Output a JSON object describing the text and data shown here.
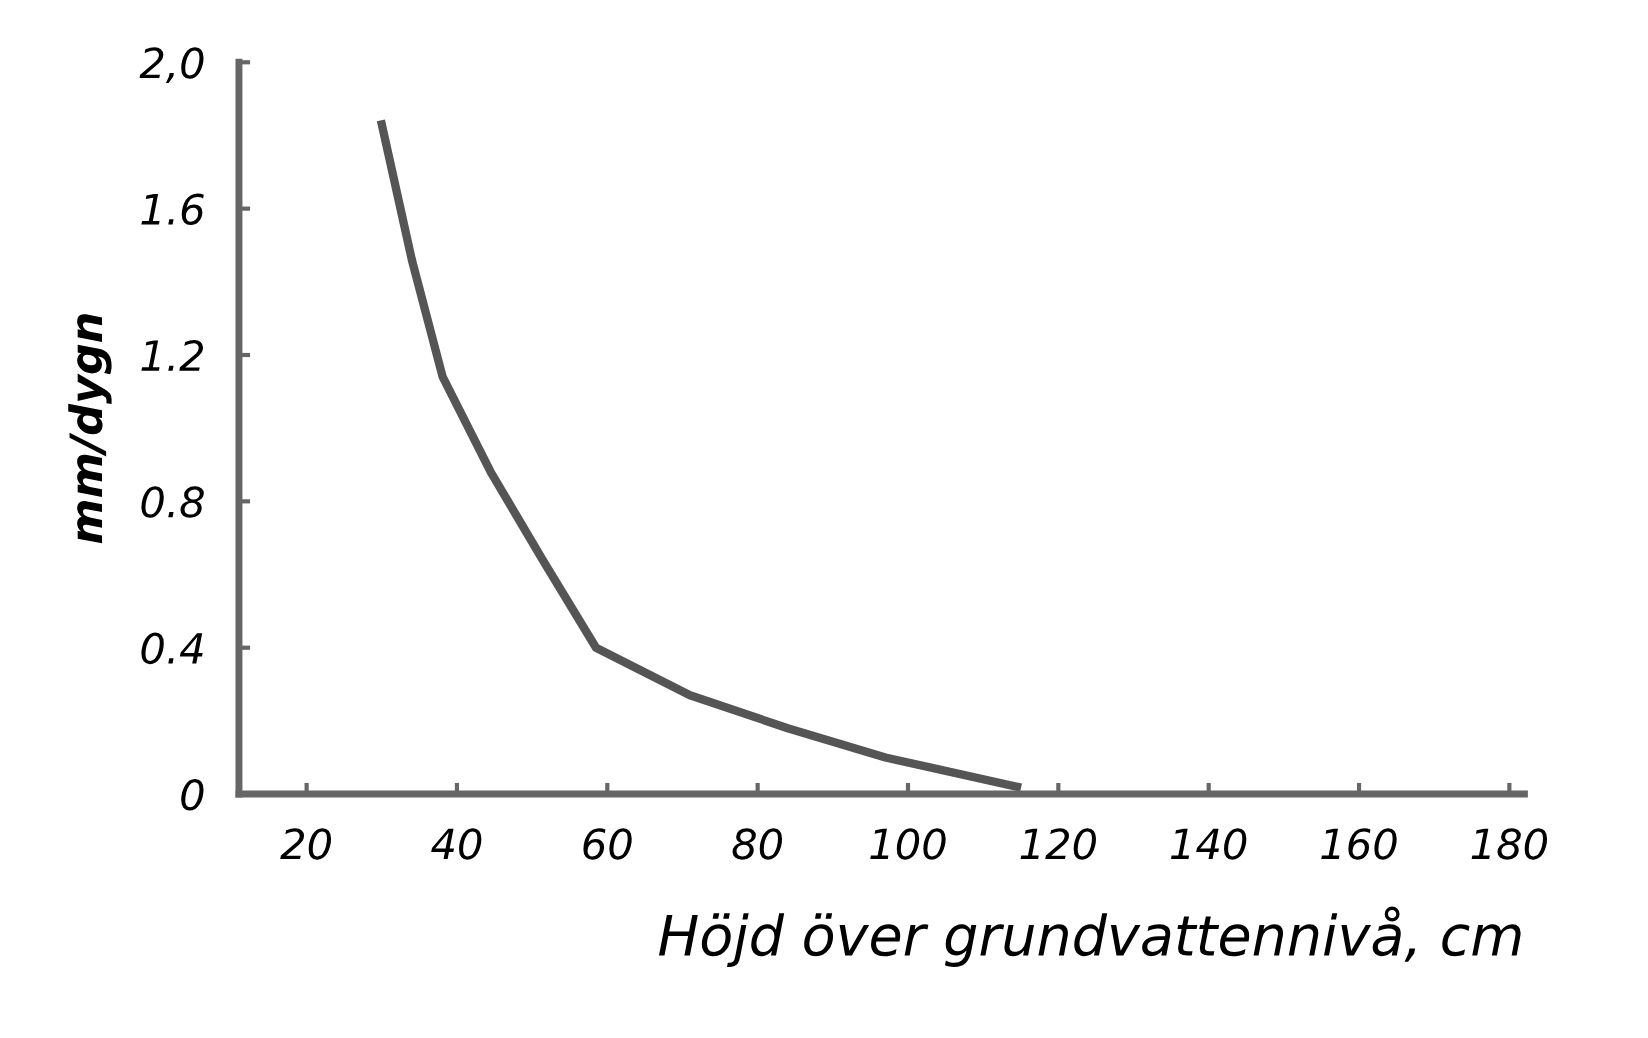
{
  "chart_data": {
    "type": "line",
    "xlabel": "Höjd över grundvattennivå, cm",
    "ylabel": "mm/dygn",
    "x": [
      30,
      34,
      38.1,
      44.5,
      51.4,
      58.5,
      71,
      84,
      97,
      114.5
    ],
    "series": [
      {
        "color": "#555555",
        "values": [
          1.83,
          1.46,
          1.14,
          0.88,
          0.64,
          0.4,
          0.27,
          0.18,
          0.1,
          0.02
        ]
      }
    ],
    "xlim": [
      11,
      182
    ],
    "xticks": [
      20,
      40,
      60,
      80,
      100,
      120,
      140,
      160,
      180
    ],
    "ylim": [
      0,
      2.0
    ],
    "yticks": [
      0,
      {
        "value": 0.4,
        "label": "0.4"
      },
      {
        "value": 0.8,
        "label": "0.8"
      },
      {
        "value": 1.2,
        "label": "1.2"
      },
      {
        "value": 1.6,
        "label": "1.6"
      },
      {
        "value": 2.0,
        "label": "2,0"
      }
    ],
    "grid": false,
    "legend": false,
    "marker": "none",
    "line_style": "solid"
  }
}
